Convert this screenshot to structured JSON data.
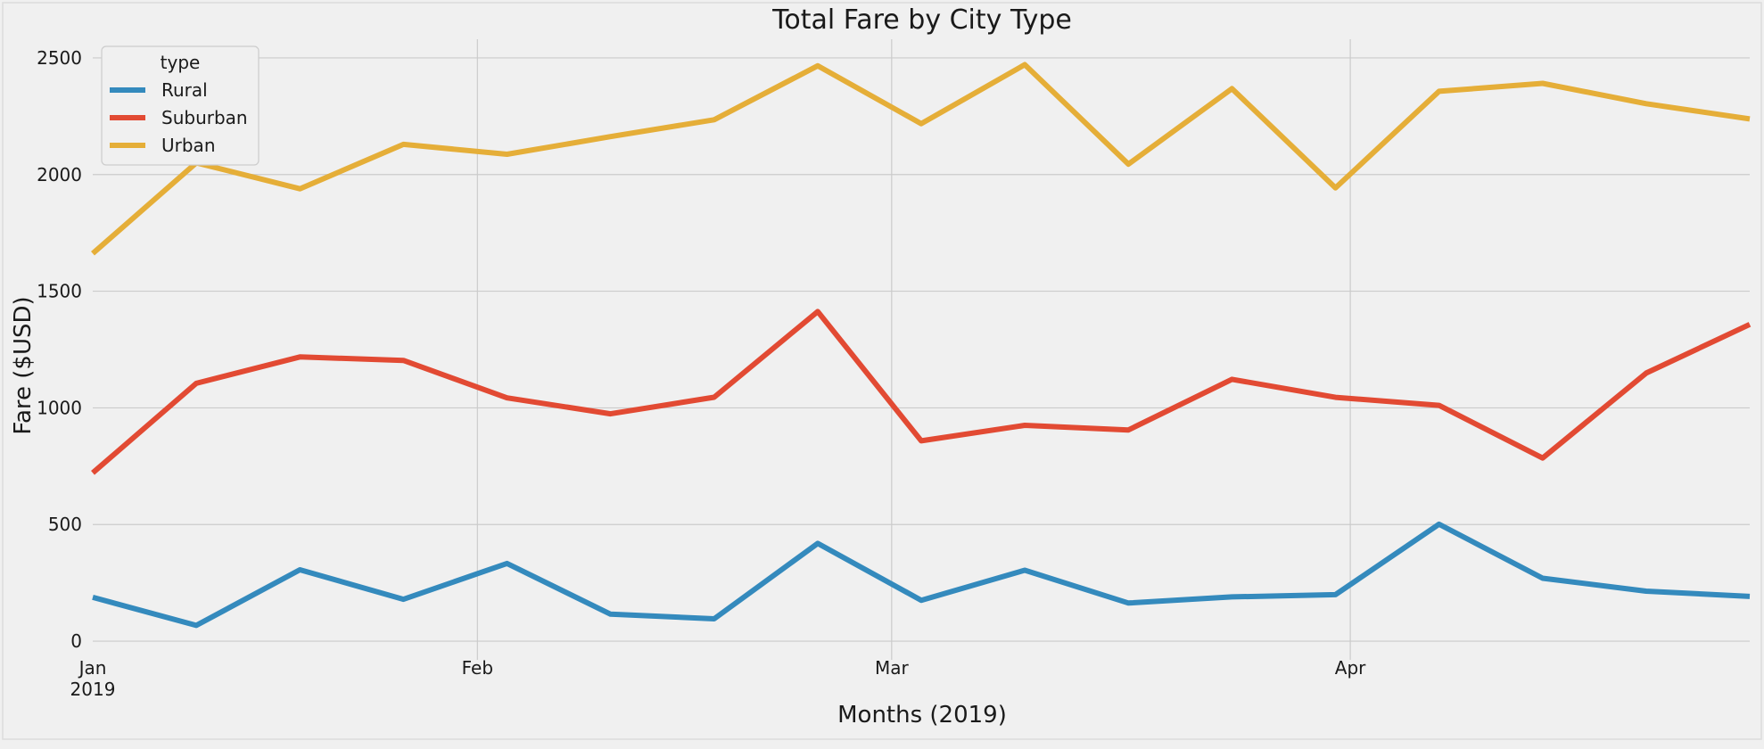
{
  "chart_data": {
    "type": "line",
    "title": "Total Fare by City Type",
    "xlabel": "Months (2019)",
    "ylabel": "Fare ($USD)",
    "ylim": [
      -80,
      2580
    ],
    "yticks": [
      0,
      500,
      1000,
      1500,
      2000,
      2500
    ],
    "x": [
      "2019-01-06",
      "2019-01-13",
      "2019-01-20",
      "2019-01-27",
      "2019-02-03",
      "2019-02-10",
      "2019-02-17",
      "2019-02-24",
      "2019-03-03",
      "2019-03-10",
      "2019-03-17",
      "2019-03-24",
      "2019-03-31",
      "2019-04-07",
      "2019-04-14",
      "2019-04-21",
      "2019-04-28"
    ],
    "xticks": [
      {
        "label": "Jan",
        "sub": "2019",
        "date": "2019-01-06"
      },
      {
        "label": "Feb",
        "sub": "",
        "date": "2019-02-01"
      },
      {
        "label": "Mar",
        "sub": "",
        "date": "2019-03-01"
      },
      {
        "label": "Apr",
        "sub": "",
        "date": "2019-04-01"
      }
    ],
    "grid": true,
    "legend": {
      "title": "type",
      "placement": "top-left"
    },
    "series": [
      {
        "name": "Rural",
        "color": "#348abd",
        "values": [
          187.92,
          67.65,
          306.0,
          179.5,
          333.08,
          115.8,
          95.82,
          419.06,
          175.14,
          303.94,
          163.39,
          189.76,
          199.42,
          501.24,
          269.79,
          214.14,
          191.85
        ]
      },
      {
        "name": "Suburban",
        "color": "#e24a33",
        "values": [
          721.6,
          1105.13,
          1218.2,
          1203.28,
          1042.79,
          974.34,
          1045.5,
          1412.74,
          858.46,
          925.27,
          905.2,
          1122.2,
          1045.06,
          1010.73,
          784.82,
          1149.27,
          1357.75
        ]
      },
      {
        "name": "Urban",
        "color": "#e5ae38",
        "values": [
          1661.68,
          2050.43,
          1939.02,
          2129.51,
          2086.94,
          2162.64,
          2235.07,
          2466.29,
          2218.2,
          2470.93,
          2044.42,
          2368.37,
          1942.77,
          2356.7,
          2390.72,
          2303.8,
          2238.29
        ]
      }
    ]
  }
}
